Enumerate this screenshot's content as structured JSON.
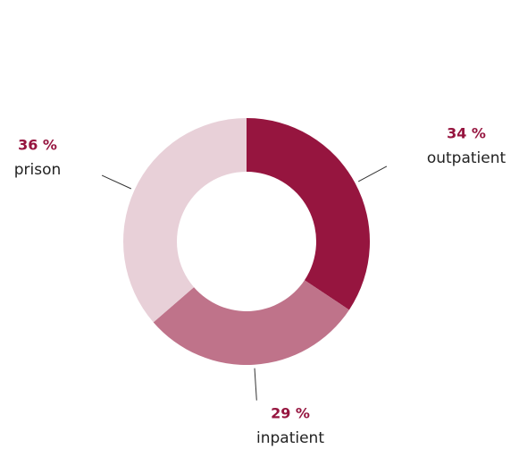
{
  "chart_data": {
    "type": "donut",
    "categories": [
      "outpatient",
      "inpatient",
      "prison"
    ],
    "values": [
      34,
      29,
      36
    ],
    "value_labels": [
      "34 %",
      "29 %",
      "36 %"
    ],
    "colors": [
      "#96153f",
      "#bf738a",
      "#e8d0d8"
    ]
  }
}
